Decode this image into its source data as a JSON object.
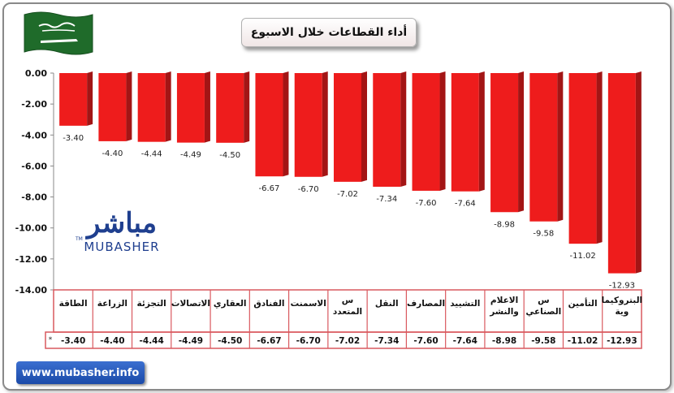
{
  "title": "أداء القطاعات خلال الاسبوع",
  "logo": {
    "arabic": "مباشر",
    "english": "MUBASHER",
    "tm": "TM"
  },
  "website": "www.mubasher.info",
  "table_marker": "*",
  "colors": {
    "bar": "#ee1c1c",
    "bar_dark": "#a31515",
    "grid_border": "#d9595f",
    "flag_green": "#1f6b2a"
  },
  "chart_data": {
    "type": "bar",
    "categories": [
      "الطاقة",
      "الزراعة",
      "التجزئة",
      "الاتصالات",
      "العقاري",
      "الفنادق",
      "الاسمنت",
      "س المتعدد",
      "النقل",
      "المصارف",
      "التشييد",
      "الاعلام والنشر",
      "س الصناعي",
      "التأمين",
      "البتروكيماوية"
    ],
    "category_lines": [
      [
        "الطاقة"
      ],
      [
        "الزراعة"
      ],
      [
        "التجزئة"
      ],
      [
        "الاتصالات"
      ],
      [
        "العقاري"
      ],
      [
        "الفنادق"
      ],
      [
        "الاسمنت"
      ],
      [
        "س",
        "المتعدد"
      ],
      [
        "النقل"
      ],
      [
        "المصارف"
      ],
      [
        "التشييد"
      ],
      [
        "الاعلام",
        "والنشر"
      ],
      [
        "س",
        "الصناعي"
      ],
      [
        "التأمين"
      ],
      [
        "البتروكيما",
        "وية"
      ]
    ],
    "values": [
      -3.4,
      -4.4,
      -4.44,
      -4.49,
      -4.5,
      -6.67,
      -6.7,
      -7.02,
      -7.34,
      -7.6,
      -7.64,
      -8.98,
      -9.58,
      -11.02,
      -12.93
    ],
    "value_labels": [
      "-3.40",
      "-4.40",
      "-4.44",
      "-4.49",
      "-4.50",
      "-6.67",
      "-6.70",
      "-7.02",
      "-7.34",
      "-7.60",
      "-7.64",
      "-8.98",
      "-9.58",
      "-11.02",
      "-12.93"
    ],
    "yticks": [
      "0.00",
      "-2.00",
      "-4.00",
      "-6.00",
      "-8.00",
      "-10.00",
      "-12.00",
      "-14.00"
    ],
    "ylim": [
      -14,
      0
    ],
    "grid": false,
    "legend": "none"
  }
}
